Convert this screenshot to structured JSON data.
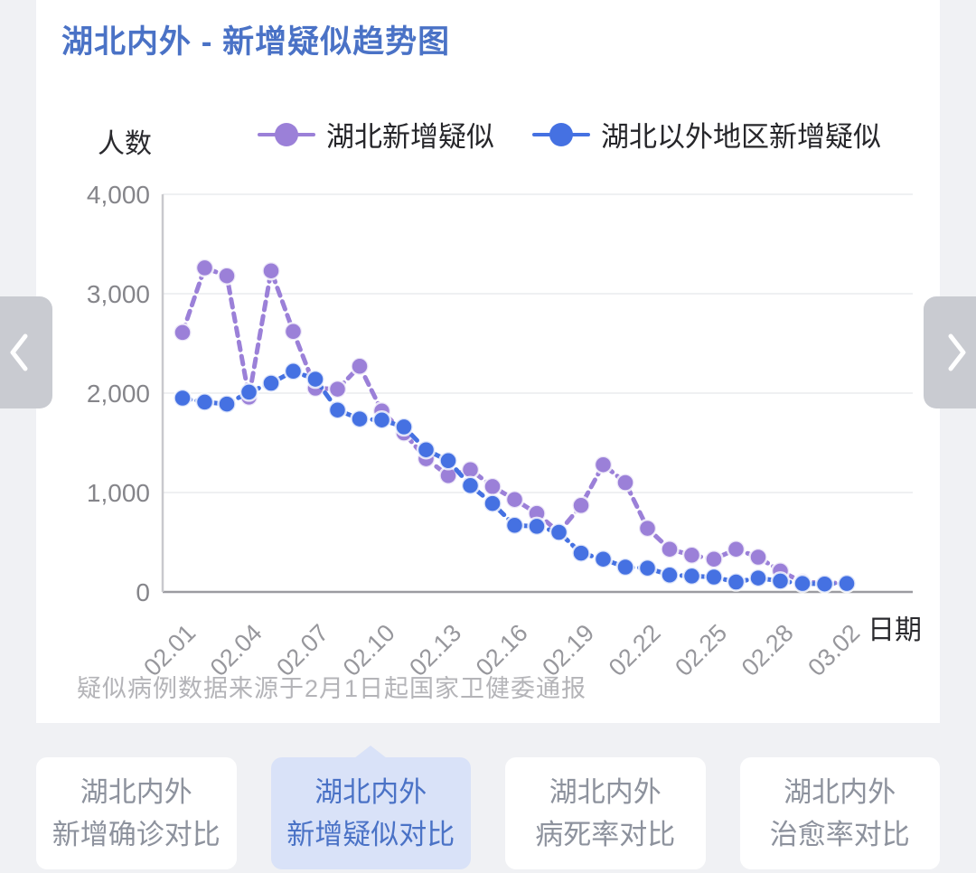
{
  "page": {
    "title": "湖北内外 - 新增疑似趋势图",
    "source_note": "疑似病例数据来源于2月1日起国家卫健委通报"
  },
  "colors": {
    "title_blue": "#4a72c6",
    "hubei_purple": "#9b80d8",
    "outside_blue": "#4571e2",
    "active_tab_bg": "#d9e2f8",
    "active_tab_text": "#4a72c6",
    "inactive_tab_text": "#8d929d",
    "grid_line": "#eaebed",
    "axis_line": "#9c9ca1"
  },
  "icons": {
    "prev": "chevron-left",
    "next": "chevron-right"
  },
  "tabs": [
    {
      "line1": "湖北内外",
      "line2": "新增确诊对比",
      "active": false
    },
    {
      "line1": "湖北内外",
      "line2": "新增疑似对比",
      "active": true
    },
    {
      "line1": "湖北内外",
      "line2": "病死率对比",
      "active": false
    },
    {
      "line1": "湖北内外",
      "line2": "治愈率对比",
      "active": false
    }
  ],
  "chart_data": {
    "type": "line",
    "title": "湖北内外 - 新增疑似趋势图",
    "xlabel": "日期",
    "ylabel": "人数",
    "ylim": [
      0,
      4000
    ],
    "yticks": [
      0,
      1000,
      2000,
      3000,
      4000
    ],
    "ytick_labels": [
      "0",
      "1,000",
      "2,000",
      "3,000",
      "4,000"
    ],
    "grid": true,
    "legend_position": "top",
    "x": [
      "02.01",
      "02.02",
      "02.03",
      "02.04",
      "02.05",
      "02.06",
      "02.07",
      "02.08",
      "02.09",
      "02.10",
      "02.11",
      "02.12",
      "02.13",
      "02.14",
      "02.15",
      "02.16",
      "02.17",
      "02.18",
      "02.19",
      "02.20",
      "02.21",
      "02.22",
      "02.23",
      "02.24",
      "02.25",
      "02.26",
      "02.27",
      "02.28",
      "02.29",
      "03.01",
      "03.02"
    ],
    "xtick_labels": [
      "02.01",
      "02.04",
      "02.07",
      "02.10",
      "02.13",
      "02.16",
      "02.19",
      "02.22",
      "02.25",
      "02.28",
      "03.02"
    ],
    "series": [
      {
        "name": "湖北新增疑似",
        "color": "#9b80d8",
        "values": [
          2610,
          3260,
          3180,
          1960,
          3230,
          2620,
          2050,
          2040,
          2270,
          1820,
          1600,
          1340,
          1170,
          1230,
          1060,
          930,
          790,
          600,
          870,
          1280,
          1100,
          640,
          430,
          370,
          330,
          430,
          350,
          210,
          100,
          90,
          90
        ]
      },
      {
        "name": "湖北以外地区新增疑似",
        "color": "#4571e2",
        "values": [
          1950,
          1910,
          1890,
          2010,
          2100,
          2220,
          2140,
          1830,
          1740,
          1730,
          1660,
          1430,
          1320,
          1070,
          890,
          670,
          660,
          600,
          390,
          330,
          250,
          240,
          170,
          160,
          150,
          100,
          140,
          110,
          85,
          80,
          85
        ]
      }
    ]
  }
}
